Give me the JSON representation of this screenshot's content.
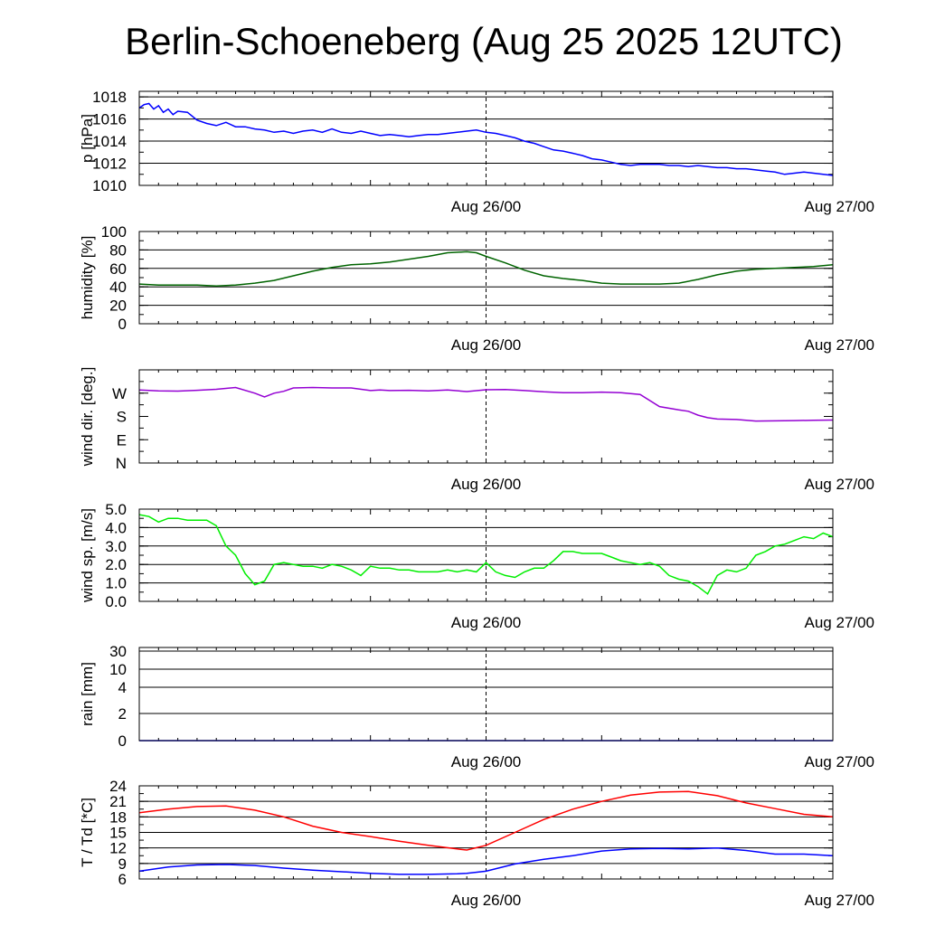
{
  "title": "Berlin-Schoeneberg (Aug 25 2025 12UTC)",
  "x_tick_labels": [
    "Aug 26/00",
    "Aug 27/00"
  ],
  "chart_data": [
    {
      "type": "line",
      "ylabel": "p [hPa]",
      "ylim": [
        1010,
        1018.5
      ],
      "yticks": [
        1010,
        1012,
        1014,
        1016,
        1018
      ],
      "yticklabels": [
        "1010",
        "1012",
        "1014",
        "1016",
        "1018"
      ],
      "grid": true,
      "x_hours": [
        0,
        0.5,
        1,
        1.5,
        2,
        2.5,
        3,
        3.5,
        4,
        5,
        6,
        7,
        8,
        9,
        10,
        11,
        12,
        13,
        14,
        15,
        16,
        17,
        18,
        19,
        20,
        21,
        22,
        23,
        24,
        25,
        26,
        27,
        28,
        29,
        30,
        31,
        32,
        33,
        34,
        35,
        36,
        37,
        38,
        39,
        40,
        41,
        42,
        43,
        44,
        45,
        46,
        47,
        48,
        49,
        50,
        51,
        52,
        53,
        54,
        55,
        56,
        57,
        58,
        59,
        60,
        61,
        62,
        63,
        64,
        65,
        66,
        67,
        68,
        69,
        70,
        71,
        72
      ],
      "values": [
        1017.0,
        1017.3,
        1017.4,
        1016.9,
        1017.2,
        1016.6,
        1016.9,
        1016.4,
        1016.7,
        1016.6,
        1015.9,
        1015.6,
        1015.4,
        1015.7,
        1015.3,
        1015.3,
        1015.1,
        1015.0,
        1014.8,
        1014.9,
        1014.7,
        1014.9,
        1015.0,
        1014.8,
        1015.1,
        1014.8,
        1014.7,
        1014.9,
        1014.7,
        1014.5,
        1014.6,
        1014.5,
        1014.4,
        1014.5,
        1014.6,
        1014.6,
        1014.7,
        1014.8,
        1014.9,
        1015.0,
        1014.8,
        1014.7,
        1014.5,
        1014.3,
        1014.0,
        1013.8,
        1013.5,
        1013.2,
        1013.1,
        1012.9,
        1012.7,
        1012.4,
        1012.3,
        1012.1,
        1011.9,
        1011.8,
        1011.9,
        1011.9,
        1011.9,
        1011.8,
        1011.8,
        1011.7,
        1011.8,
        1011.7,
        1011.6,
        1011.6,
        1011.5,
        1011.5,
        1011.4,
        1011.3,
        1011.2,
        1011.0,
        1011.1,
        1011.2,
        1011.1,
        1011.0,
        1010.9
      ],
      "color": "#0000ff"
    },
    {
      "type": "line",
      "ylabel": "humidity [%]",
      "ylim": [
        0,
        100
      ],
      "yticks": [
        0,
        20,
        40,
        60,
        80,
        100
      ],
      "yticklabels": [
        "0",
        "20",
        "40",
        "60",
        "80",
        "100"
      ],
      "grid": true,
      "x_hours": [
        0,
        2,
        4,
        6,
        8,
        10,
        12,
        14,
        16,
        18,
        20,
        22,
        24,
        26,
        28,
        30,
        32,
        34,
        35,
        36,
        38,
        40,
        42,
        44,
        46,
        48,
        50,
        52,
        54,
        56,
        58,
        60,
        62,
        64,
        66,
        68,
        70,
        72
      ],
      "values": [
        43,
        42,
        42,
        42,
        41,
        42,
        44,
        47,
        52,
        57,
        61,
        64,
        65,
        67,
        70,
        73,
        77,
        78,
        77,
        73,
        66,
        58,
        52,
        49,
        47,
        44,
        43,
        43,
        43,
        44,
        48,
        53,
        57,
        59,
        60,
        61,
        62,
        64
      ],
      "color": "#006400"
    },
    {
      "type": "line",
      "ylabel": "wind dir. [deg.]",
      "ylim": [
        0,
        360
      ],
      "yticks": [
        0,
        90,
        180,
        270
      ],
      "yticklabels": [
        "N",
        "E",
        "S",
        "W"
      ],
      "grid": false,
      "x_hours": [
        0,
        2,
        4,
        6,
        8,
        10,
        12,
        13,
        14,
        15,
        16,
        18,
        20,
        22,
        24,
        25,
        26,
        28,
        30,
        32,
        34,
        36,
        38,
        40,
        42,
        44,
        46,
        48,
        50,
        52,
        54,
        56,
        57,
        58,
        59,
        60,
        62,
        64,
        66,
        68,
        70,
        72
      ],
      "values": [
        282,
        279,
        278,
        281,
        285,
        292,
        270,
        255,
        270,
        277,
        290,
        292,
        290,
        290,
        280,
        282,
        280,
        281,
        279,
        282,
        276,
        283,
        284,
        280,
        275,
        272,
        272,
        274,
        272,
        265,
        218,
        205,
        200,
        185,
        175,
        170,
        168,
        162,
        163,
        164,
        165,
        166
      ],
      "color": "#9400d3"
    },
    {
      "type": "line",
      "ylabel": "wind sp. [m/s]",
      "ylim": [
        0,
        5
      ],
      "yticks": [
        0,
        1,
        2,
        3,
        4,
        5
      ],
      "yticklabels": [
        "0.0",
        "1.0",
        "2.0",
        "3.0",
        "4.0",
        "5.0"
      ],
      "grid": true,
      "x_hours": [
        0,
        1,
        2,
        3,
        4,
        5,
        6,
        7,
        8,
        9,
        10,
        11,
        12,
        13,
        14,
        15,
        16,
        17,
        18,
        19,
        20,
        21,
        22,
        23,
        24,
        25,
        26,
        27,
        28,
        29,
        30,
        31,
        32,
        33,
        34,
        35,
        36,
        37,
        38,
        39,
        40,
        41,
        42,
        43,
        44,
        45,
        46,
        47,
        48,
        49,
        50,
        51,
        52,
        53,
        54,
        55,
        56,
        57,
        58,
        59,
        60,
        61,
        62,
        63,
        64,
        65,
        66,
        67,
        68,
        69,
        70,
        71,
        72
      ],
      "values": [
        4.7,
        4.6,
        4.3,
        4.5,
        4.5,
        4.4,
        4.4,
        4.4,
        4.1,
        3.0,
        2.5,
        1.5,
        0.9,
        1.1,
        2.0,
        2.1,
        2.0,
        1.9,
        1.9,
        1.8,
        2.0,
        1.9,
        1.7,
        1.4,
        1.9,
        1.8,
        1.8,
        1.7,
        1.7,
        1.6,
        1.6,
        1.6,
        1.7,
        1.6,
        1.7,
        1.6,
        2.1,
        1.6,
        1.4,
        1.3,
        1.6,
        1.8,
        1.8,
        2.2,
        2.7,
        2.7,
        2.6,
        2.6,
        2.6,
        2.4,
        2.2,
        2.1,
        2.0,
        2.1,
        1.9,
        1.4,
        1.2,
        1.1,
        0.8,
        0.4,
        1.4,
        1.7,
        1.6,
        1.8,
        2.5,
        2.7,
        3.0,
        3.1,
        3.3,
        3.5,
        3.4,
        3.7,
        3.5
      ],
      "color": "#00ee00"
    },
    {
      "type": "line",
      "ylabel": "rain [mm]",
      "yscale": "nonlinear",
      "yticks": [
        0,
        2,
        4,
        10,
        30
      ],
      "yticklabels": [
        "0",
        "2",
        "4",
        "10",
        "30"
      ],
      "grid": true,
      "x_hours": [
        0,
        72
      ],
      "values": [
        0,
        0
      ],
      "color": "#0000ff"
    },
    {
      "type": "line",
      "ylabel": "T / Td [*C]",
      "ylim": [
        6,
        24
      ],
      "yticks": [
        6,
        9,
        12,
        15,
        18,
        21,
        24
      ],
      "yticklabels": [
        "6",
        "9",
        "12",
        "15",
        "18",
        "21",
        "24"
      ],
      "grid": true,
      "x_hours": [
        0,
        3,
        6,
        9,
        12,
        15,
        18,
        21,
        24,
        27,
        30,
        33,
        34,
        36,
        39,
        42,
        45,
        48,
        51,
        54,
        57,
        60,
        63,
        66,
        69,
        72
      ],
      "series": [
        {
          "values": [
            18.8,
            19.5,
            20.0,
            20.1,
            19.3,
            18.0,
            16.2,
            15.0,
            14.2,
            13.3,
            12.5,
            11.8,
            11.6,
            12.5,
            15.0,
            17.5,
            19.5,
            21.0,
            22.2,
            22.8,
            22.9,
            22.1,
            20.7,
            19.6,
            18.5,
            18.0
          ],
          "color": "#ff0000"
        },
        {
          "values": [
            7.5,
            8.3,
            8.7,
            8.8,
            8.6,
            8.1,
            7.7,
            7.4,
            7.1,
            6.9,
            6.9,
            7.0,
            7.1,
            7.5,
            8.9,
            9.8,
            10.5,
            11.4,
            11.8,
            11.9,
            11.8,
            12.0,
            11.5,
            10.8,
            10.8,
            10.5
          ],
          "color": "#0000ff"
        }
      ]
    }
  ]
}
